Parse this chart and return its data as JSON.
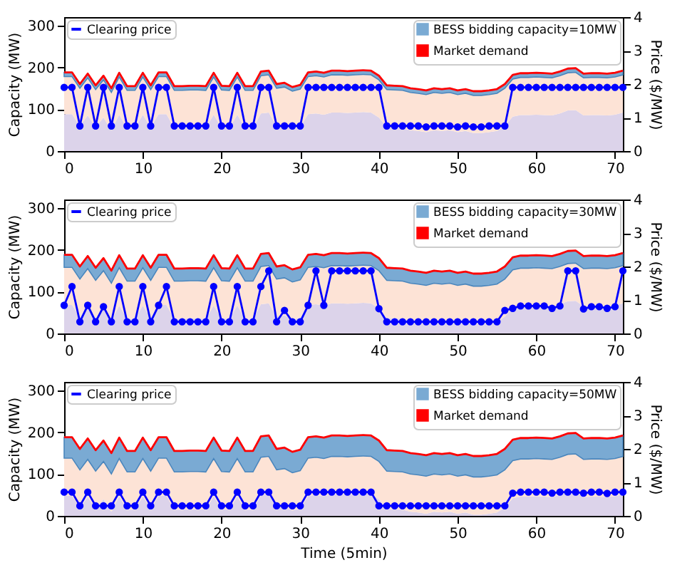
{
  "chart_data": [
    {
      "type": "line",
      "ylabel": "Capacity (MW)",
      "y2label": "Price ($/MW)",
      "xlim": [
        0,
        71
      ],
      "xticks": [
        0,
        10,
        20,
        30,
        40,
        50,
        60,
        70
      ],
      "ylim": [
        0,
        320
      ],
      "yticks": [
        0,
        100,
        200,
        300
      ],
      "y2lim": [
        0,
        4
      ],
      "y2ticks": [
        0,
        1,
        2,
        3,
        4
      ],
      "grid": false,
      "legend": "top right",
      "stacked": true,
      "x": [
        0,
        1,
        2,
        3,
        4,
        5,
        6,
        7,
        8,
        9,
        10,
        11,
        12,
        13,
        14,
        15,
        16,
        17,
        18,
        19,
        20,
        21,
        22,
        23,
        24,
        25,
        26,
        27,
        28,
        29,
        30,
        31,
        32,
        33,
        34,
        35,
        36,
        37,
        38,
        39,
        40,
        41,
        42,
        43,
        44,
        45,
        46,
        47,
        48,
        49,
        50,
        51,
        52,
        53,
        54,
        55,
        56,
        57,
        58,
        59,
        60,
        61,
        62,
        63,
        64,
        65,
        66,
        67,
        68,
        69,
        70,
        71
      ],
      "series": [
        {
          "type": "area",
          "color": "#dcd3ea",
          "values": [
            88,
            88,
            60,
            85,
            57,
            80,
            50,
            87,
            55,
            55,
            87,
            57,
            88,
            88,
            55,
            55,
            56,
            56,
            55,
            87,
            56,
            55,
            87,
            55,
            55,
            90,
            92,
            60,
            63,
            53,
            58,
            88,
            90,
            87,
            92,
            92,
            91,
            92,
            93,
            92,
            80,
            57,
            56,
            55,
            50,
            48,
            45,
            50,
            48,
            50,
            45,
            48,
            43,
            43,
            45,
            48,
            60,
            82,
            86,
            86,
            87,
            86,
            85,
            90,
            97,
            98,
            85,
            86,
            86,
            85,
            87,
            92
          ]
        },
        {
          "type": "area",
          "color": "#fde3d6",
          "values": [
            90,
            90,
            90,
            90,
            90,
            90,
            90,
            90,
            90,
            90,
            90,
            90,
            90,
            90,
            90,
            90,
            90,
            90,
            90,
            90,
            90,
            90,
            90,
            90,
            90,
            90,
            90,
            90,
            90,
            90,
            90,
            90,
            90,
            90,
            90,
            90,
            90,
            90,
            90,
            90,
            90,
            90,
            90,
            90,
            90,
            90,
            90,
            90,
            90,
            90,
            90,
            90,
            90,
            90,
            90,
            90,
            90,
            90,
            90,
            90,
            90,
            90,
            90,
            90,
            90,
            90,
            90,
            90,
            90,
            90,
            90,
            90
          ]
        },
        {
          "type": "area",
          "name": "BESS bidding capacity=10MW",
          "color": "#7aaad3",
          "values": [
            10,
            10,
            10,
            10,
            10,
            10,
            10,
            10,
            10,
            10,
            10,
            10,
            10,
            10,
            10,
            10,
            10,
            10,
            10,
            10,
            10,
            10,
            10,
            10,
            10,
            10,
            10,
            10,
            10,
            10,
            10,
            10,
            10,
            10,
            10,
            10,
            10,
            10,
            10,
            10,
            10,
            10,
            10,
            10,
            10,
            10,
            10,
            10,
            10,
            10,
            10,
            10,
            10,
            10,
            10,
            10,
            10,
            10,
            10,
            10,
            10,
            10,
            10,
            10,
            10,
            10,
            10,
            10,
            10,
            10,
            10,
            10
          ]
        },
        {
          "type": "line",
          "name": "Market demand",
          "color": "#ff0000",
          "values": [
            188,
            188,
            160,
            185,
            157,
            180,
            150,
            187,
            155,
            155,
            187,
            157,
            188,
            188,
            155,
            155,
            156,
            156,
            155,
            187,
            156,
            155,
            187,
            155,
            155,
            190,
            192,
            160,
            163,
            153,
            158,
            188,
            190,
            187,
            192,
            192,
            191,
            192,
            193,
            192,
            180,
            157,
            156,
            155,
            150,
            148,
            145,
            150,
            148,
            150,
            145,
            148,
            143,
            143,
            145,
            148,
            160,
            182,
            186,
            186,
            187,
            186,
            185,
            190,
            197,
            198,
            185,
            186,
            186,
            185,
            187,
            192
          ]
        },
        {
          "type": "line",
          "name": "Clearing price",
          "color": "#0000ff",
          "axis": "y2",
          "marker": "circle",
          "values": [
            1.9,
            1.9,
            0.75,
            1.9,
            0.75,
            1.9,
            0.75,
            1.9,
            0.75,
            0.75,
            1.9,
            0.75,
            1.9,
            1.9,
            0.75,
            0.75,
            0.75,
            0.75,
            0.75,
            1.9,
            0.75,
            0.75,
            1.9,
            0.75,
            0.75,
            1.9,
            1.9,
            0.75,
            0.75,
            0.75,
            0.75,
            1.9,
            1.9,
            1.9,
            1.9,
            1.9,
            1.9,
            1.9,
            1.9,
            1.9,
            1.9,
            0.75,
            0.75,
            0.75,
            0.75,
            0.75,
            0.72,
            0.75,
            0.75,
            0.75,
            0.72,
            0.75,
            0.72,
            0.72,
            0.75,
            0.75,
            0.75,
            1.9,
            1.9,
            1.9,
            1.9,
            1.9,
            1.9,
            1.9,
            1.9,
            1.9,
            1.9,
            1.9,
            1.9,
            1.9,
            1.9,
            1.9
          ]
        }
      ]
    },
    {
      "type": "line",
      "ylabel": "Capacity (MW)",
      "y2label": "Price ($/MW)",
      "xlim": [
        0,
        71
      ],
      "xticks": [
        0,
        10,
        20,
        30,
        40,
        50,
        60,
        70
      ],
      "ylim": [
        0,
        320
      ],
      "yticks": [
        0,
        100,
        200,
        300
      ],
      "y2lim": [
        0,
        4
      ],
      "y2ticks": [
        0,
        1,
        2,
        3,
        4
      ],
      "grid": false,
      "legend": "top right",
      "stacked": true,
      "x": [
        0,
        1,
        2,
        3,
        4,
        5,
        6,
        7,
        8,
        9,
        10,
        11,
        12,
        13,
        14,
        15,
        16,
        17,
        18,
        19,
        20,
        21,
        22,
        23,
        24,
        25,
        26,
        27,
        28,
        29,
        30,
        31,
        32,
        33,
        34,
        35,
        36,
        37,
        38,
        39,
        40,
        41,
        42,
        43,
        44,
        45,
        46,
        47,
        48,
        49,
        50,
        51,
        52,
        53,
        54,
        55,
        56,
        57,
        58,
        59,
        60,
        61,
        62,
        63,
        64,
        65,
        66,
        67,
        68,
        69,
        70,
        71
      ],
      "series": [
        {
          "type": "area",
          "color": "#dcd3ea",
          "values": [
            68,
            68,
            40,
            65,
            37,
            60,
            30,
            67,
            35,
            35,
            67,
            37,
            68,
            68,
            35,
            35,
            36,
            36,
            35,
            67,
            36,
            35,
            67,
            35,
            35,
            70,
            72,
            40,
            43,
            33,
            38,
            68,
            70,
            67,
            72,
            72,
            71,
            72,
            73,
            72,
            60,
            37,
            36,
            35,
            30,
            28,
            25,
            30,
            28,
            30,
            25,
            28,
            23,
            23,
            25,
            28,
            40,
            62,
            66,
            66,
            67,
            66,
            65,
            70,
            77,
            78,
            65,
            66,
            66,
            65,
            67,
            72
          ]
        },
        {
          "type": "area",
          "color": "#fde3d6",
          "values": [
            90,
            90,
            90,
            90,
            90,
            90,
            90,
            90,
            90,
            90,
            90,
            90,
            90,
            90,
            90,
            90,
            90,
            90,
            90,
            90,
            90,
            90,
            90,
            90,
            90,
            90,
            90,
            90,
            90,
            90,
            90,
            90,
            90,
            90,
            90,
            90,
            90,
            90,
            90,
            90,
            90,
            90,
            90,
            90,
            90,
            90,
            90,
            90,
            90,
            90,
            90,
            90,
            90,
            90,
            90,
            90,
            90,
            90,
            90,
            90,
            90,
            90,
            90,
            90,
            90,
            90,
            90,
            90,
            90,
            90,
            90,
            90
          ]
        },
        {
          "type": "area",
          "name": "BESS bidding capacity=30MW",
          "color": "#7aaad3",
          "values": [
            30,
            30,
            30,
            30,
            30,
            30,
            30,
            30,
            30,
            30,
            30,
            30,
            30,
            30,
            30,
            30,
            30,
            30,
            30,
            30,
            30,
            30,
            30,
            30,
            30,
            30,
            30,
            30,
            30,
            30,
            30,
            30,
            30,
            30,
            30,
            30,
            30,
            30,
            30,
            30,
            30,
            30,
            30,
            30,
            30,
            30,
            30,
            30,
            30,
            30,
            30,
            30,
            30,
            30,
            30,
            30,
            30,
            30,
            30,
            30,
            30,
            30,
            30,
            30,
            30,
            30,
            30,
            30,
            30,
            30,
            30,
            30
          ]
        },
        {
          "type": "line",
          "name": "Market demand",
          "color": "#ff0000",
          "values": [
            188,
            188,
            160,
            185,
            157,
            180,
            150,
            187,
            155,
            155,
            187,
            157,
            188,
            188,
            155,
            155,
            156,
            156,
            155,
            187,
            156,
            155,
            187,
            155,
            155,
            190,
            192,
            160,
            163,
            153,
            158,
            188,
            190,
            187,
            192,
            192,
            191,
            192,
            193,
            192,
            180,
            157,
            156,
            155,
            150,
            148,
            145,
            150,
            148,
            150,
            145,
            148,
            143,
            143,
            145,
            148,
            160,
            182,
            186,
            186,
            187,
            186,
            185,
            190,
            197,
            198,
            185,
            186,
            186,
            185,
            187,
            192
          ]
        },
        {
          "type": "line",
          "name": "Clearing price",
          "color": "#0000ff",
          "axis": "y2",
          "marker": "circle",
          "values": [
            0.84,
            1.4,
            0.35,
            0.84,
            0.35,
            0.8,
            0.35,
            1.4,
            0.35,
            0.35,
            1.4,
            0.35,
            0.84,
            1.4,
            0.35,
            0.35,
            0.35,
            0.35,
            0.35,
            1.4,
            0.35,
            0.35,
            1.4,
            0.35,
            0.35,
            1.4,
            1.87,
            0.35,
            0.69,
            0.35,
            0.35,
            0.84,
            1.87,
            0.84,
            1.87,
            1.87,
            1.87,
            1.87,
            1.87,
            1.87,
            0.74,
            0.35,
            0.35,
            0.35,
            0.35,
            0.35,
            0.35,
            0.35,
            0.35,
            0.35,
            0.35,
            0.35,
            0.35,
            0.35,
            0.35,
            0.35,
            0.69,
            0.75,
            0.82,
            0.82,
            0.82,
            0.82,
            0.75,
            0.82,
            1.87,
            1.87,
            0.73,
            0.8,
            0.8,
            0.75,
            0.8,
            1.87
          ]
        }
      ]
    },
    {
      "type": "line",
      "xlabel": "Time (5min)",
      "ylabel": "Capacity (MW)",
      "y2label": "Price ($/MW)",
      "xlim": [
        0,
        71
      ],
      "xticks": [
        0,
        10,
        20,
        30,
        40,
        50,
        60,
        70
      ],
      "ylim": [
        0,
        320
      ],
      "yticks": [
        0,
        100,
        200,
        300
      ],
      "y2lim": [
        0,
        4
      ],
      "y2ticks": [
        0,
        1,
        2,
        3,
        4
      ],
      "grid": false,
      "legend": "top right",
      "stacked": true,
      "x": [
        0,
        1,
        2,
        3,
        4,
        5,
        6,
        7,
        8,
        9,
        10,
        11,
        12,
        13,
        14,
        15,
        16,
        17,
        18,
        19,
        20,
        21,
        22,
        23,
        24,
        25,
        26,
        27,
        28,
        29,
        30,
        31,
        32,
        33,
        34,
        35,
        36,
        37,
        38,
        39,
        40,
        41,
        42,
        43,
        44,
        45,
        46,
        47,
        48,
        49,
        50,
        51,
        52,
        53,
        54,
        55,
        56,
        57,
        58,
        59,
        60,
        61,
        62,
        63,
        64,
        65,
        66,
        67,
        68,
        69,
        70,
        71
      ],
      "series": [
        {
          "type": "area",
          "color": "#dcd3ea",
          "values": [
            48,
            48,
            20,
            45,
            17,
            40,
            10,
            47,
            15,
            15,
            47,
            17,
            48,
            48,
            15,
            15,
            16,
            16,
            15,
            47,
            16,
            15,
            47,
            15,
            15,
            50,
            52,
            20,
            23,
            13,
            18,
            48,
            50,
            47,
            52,
            52,
            51,
            52,
            53,
            52,
            40,
            17,
            16,
            15,
            10,
            8,
            5,
            10,
            8,
            10,
            5,
            8,
            3,
            3,
            5,
            8,
            20,
            42,
            46,
            46,
            47,
            46,
            45,
            50,
            57,
            58,
            45,
            46,
            46,
            45,
            47,
            52
          ]
        },
        {
          "type": "area",
          "color": "#fde3d6",
          "values": [
            90,
            90,
            90,
            90,
            90,
            90,
            90,
            90,
            90,
            90,
            90,
            90,
            90,
            90,
            90,
            90,
            90,
            90,
            90,
            90,
            90,
            90,
            90,
            90,
            90,
            90,
            90,
            90,
            90,
            90,
            90,
            90,
            90,
            90,
            90,
            90,
            90,
            90,
            90,
            90,
            90,
            90,
            90,
            90,
            90,
            90,
            90,
            90,
            90,
            90,
            90,
            90,
            90,
            90,
            90,
            90,
            90,
            90,
            90,
            90,
            90,
            90,
            90,
            90,
            90,
            90,
            90,
            90,
            90,
            90,
            90,
            90
          ]
        },
        {
          "type": "area",
          "name": "BESS bidding capacity=50MW",
          "color": "#7aaad3",
          "values": [
            50,
            50,
            50,
            50,
            50,
            50,
            50,
            50,
            50,
            50,
            50,
            50,
            50,
            50,
            50,
            50,
            50,
            50,
            50,
            50,
            50,
            50,
            50,
            50,
            50,
            50,
            50,
            50,
            50,
            50,
            50,
            50,
            50,
            50,
            50,
            50,
            50,
            50,
            50,
            50,
            50,
            50,
            50,
            50,
            50,
            50,
            50,
            50,
            50,
            50,
            50,
            50,
            50,
            50,
            50,
            50,
            50,
            50,
            50,
            50,
            50,
            50,
            50,
            50,
            50,
            50,
            50,
            50,
            50,
            50,
            50,
            50
          ]
        },
        {
          "type": "line",
          "name": "Market demand",
          "color": "#ff0000",
          "values": [
            188,
            188,
            160,
            185,
            157,
            180,
            150,
            187,
            155,
            155,
            187,
            157,
            188,
            188,
            155,
            155,
            156,
            156,
            155,
            187,
            156,
            155,
            187,
            155,
            155,
            190,
            192,
            160,
            163,
            153,
            158,
            188,
            190,
            187,
            192,
            192,
            191,
            192,
            193,
            192,
            180,
            157,
            156,
            155,
            150,
            148,
            145,
            150,
            148,
            150,
            145,
            148,
            143,
            143,
            145,
            148,
            160,
            182,
            186,
            186,
            187,
            186,
            185,
            190,
            197,
            198,
            185,
            186,
            186,
            185,
            187,
            192
          ]
        },
        {
          "type": "line",
          "name": "Clearing price",
          "color": "#0000ff",
          "axis": "y2",
          "marker": "circle",
          "values": [
            0.71,
            0.71,
            0.3,
            0.71,
            0.3,
            0.3,
            0.3,
            0.71,
            0.3,
            0.3,
            0.71,
            0.3,
            0.71,
            0.71,
            0.3,
            0.3,
            0.3,
            0.3,
            0.3,
            0.71,
            0.3,
            0.3,
            0.71,
            0.3,
            0.3,
            0.71,
            0.71,
            0.3,
            0.3,
            0.3,
            0.3,
            0.71,
            0.71,
            0.71,
            0.71,
            0.71,
            0.71,
            0.71,
            0.71,
            0.71,
            0.3,
            0.3,
            0.3,
            0.3,
            0.3,
            0.3,
            0.3,
            0.3,
            0.3,
            0.3,
            0.3,
            0.3,
            0.3,
            0.3,
            0.3,
            0.3,
            0.3,
            0.68,
            0.71,
            0.71,
            0.71,
            0.71,
            0.68,
            0.71,
            0.71,
            0.71,
            0.68,
            0.71,
            0.71,
            0.67,
            0.71,
            0.71
          ]
        }
      ]
    }
  ]
}
